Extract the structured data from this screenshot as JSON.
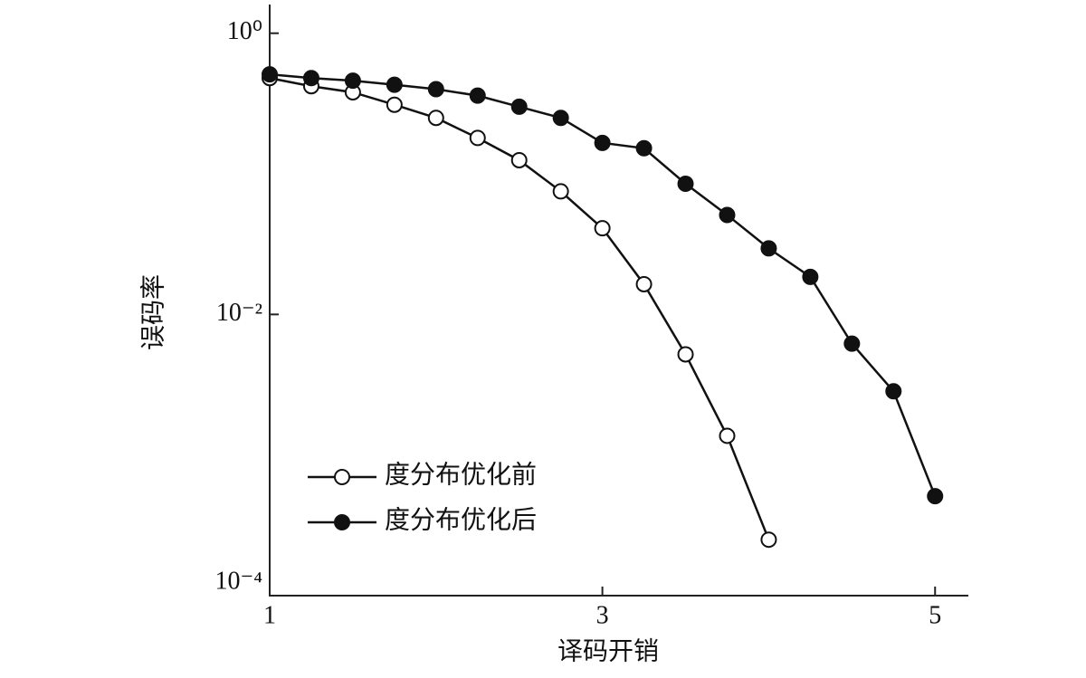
{
  "chart_data": {
    "type": "line",
    "x_label": "译码开销",
    "y_label": "误码率",
    "xlim": [
      1,
      5.2
    ],
    "xticks": [
      1,
      3,
      5
    ],
    "ylim": [
      0.0001,
      1.6
    ],
    "y_scale": "log",
    "yticks": [
      {
        "value": 1,
        "label": "10⁰"
      },
      {
        "value": 0.01,
        "label": "10⁻²"
      },
      {
        "value": 0.0001,
        "label": "10⁻⁴"
      }
    ],
    "legend": "lower left",
    "series": [
      {
        "name": "度分布优化前",
        "color": "#111111",
        "marker": "open circle",
        "x": [
          1,
          1.25,
          1.5,
          1.75,
          2,
          2.25,
          2.5,
          2.75,
          3,
          3.25,
          3.5,
          3.75,
          4
        ],
        "values": [
          0.48,
          0.42,
          0.38,
          0.31,
          0.25,
          0.18,
          0.125,
          0.075,
          0.041,
          0.0164,
          0.0052,
          0.00137,
          0.00025
        ]
      },
      {
        "name": "度分布优化后",
        "color": "#111111",
        "marker": "filled circle",
        "x": [
          1,
          1.25,
          1.5,
          1.75,
          2,
          2.25,
          2.5,
          2.75,
          3,
          3.25,
          3.5,
          3.75,
          4,
          4.25,
          4.5,
          4.75,
          5
        ],
        "values": [
          0.51,
          0.48,
          0.46,
          0.43,
          0.4,
          0.36,
          0.3,
          0.25,
          0.166,
          0.152,
          0.085,
          0.051,
          0.0295,
          0.0185,
          0.0062,
          0.00284,
          0.00051
        ]
      }
    ]
  }
}
